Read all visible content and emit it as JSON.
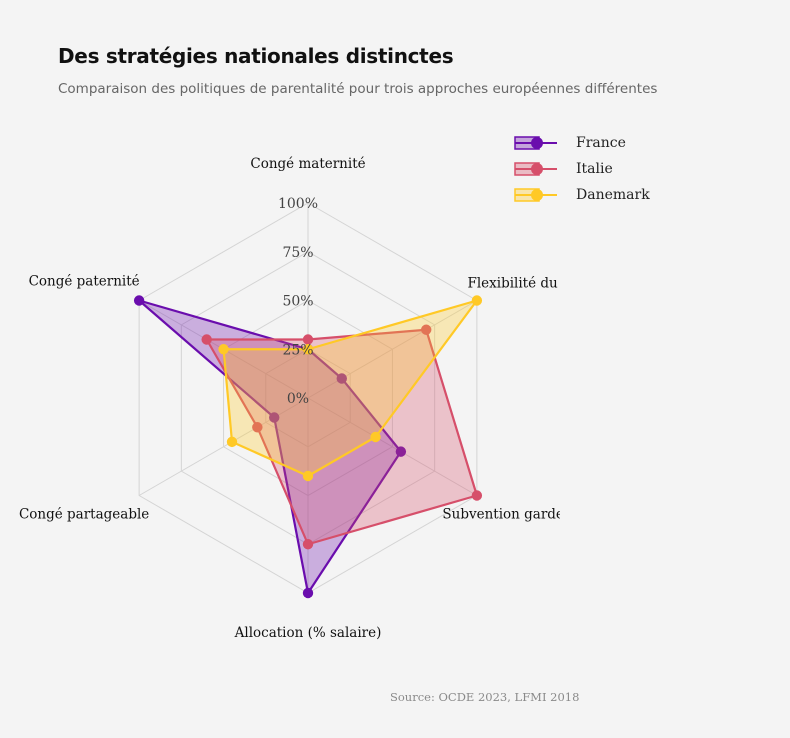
{
  "header": {
    "title": "Des stratégies nationales distinctes",
    "subtitle": "Comparaison des politiques de parentalité pour trois approches européennes différentes"
  },
  "footer": {
    "source": "Source: OCDE 2023, LFMI 2018"
  },
  "chart_data": {
    "type": "radar",
    "axes": [
      "Congé maternité",
      "Flexibilité du travail",
      "Subvention garde d'enfants",
      "Allocation (% salaire)",
      "Congé partageable",
      "Congé paternité"
    ],
    "rticks": [
      "0%",
      "25%",
      "50%",
      "75%",
      "100%"
    ],
    "rrange": [
      0,
      100
    ],
    "grid": true,
    "legend_position": "top-right",
    "series": [
      {
        "name": "France",
        "color": "#6a0dad",
        "values": [
          25,
          20,
          55,
          100,
          20,
          100
        ]
      },
      {
        "name": "Italie",
        "color": "#d64f6a",
        "values": [
          30,
          70,
          100,
          75,
          30,
          60
        ]
      },
      {
        "name": "Danemark",
        "color": "#ffc926",
        "values": [
          25,
          100,
          40,
          40,
          45,
          50
        ]
      }
    ]
  }
}
